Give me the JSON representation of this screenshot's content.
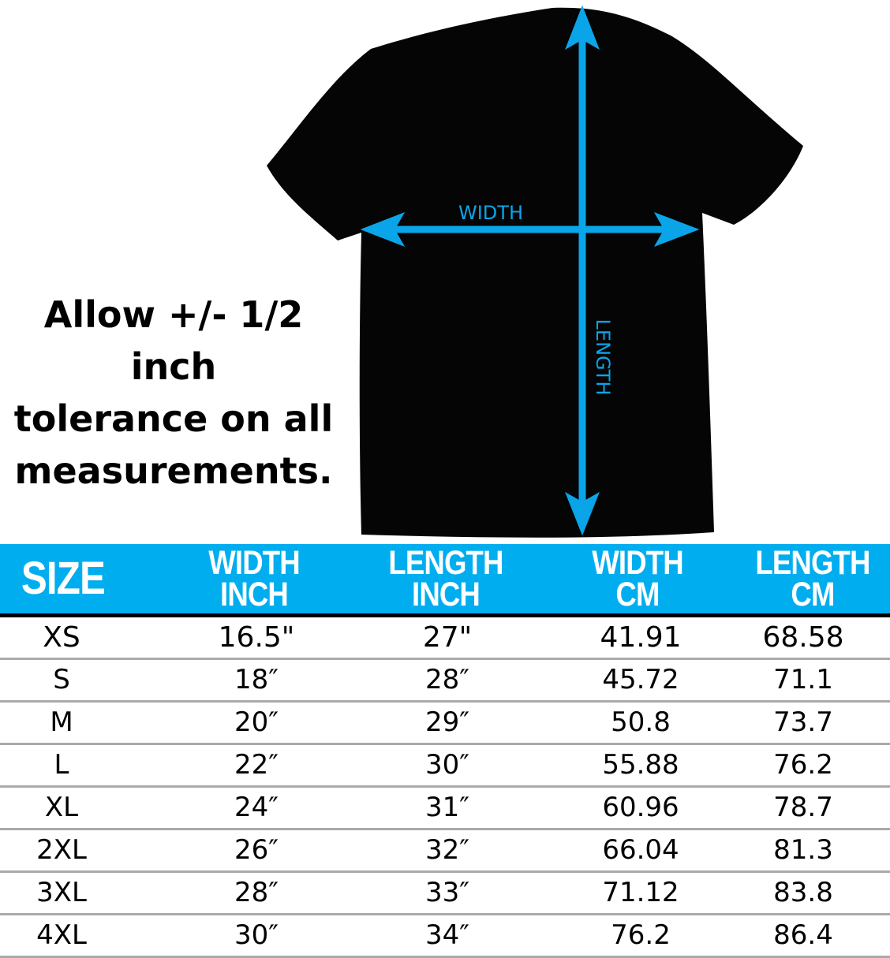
{
  "diagram": {
    "width_label": "WIDTH",
    "length_label": "LENGTH",
    "arrow_color": "#0aa5e9",
    "shirt_color": "#050505"
  },
  "tolerance_note": [
    "Allow +/- 1/2 inch",
    "tolerance on all",
    "measurements."
  ],
  "table": {
    "header_color": "#00aeef",
    "headers": [
      [
        "SIZE"
      ],
      [
        "WIDTH",
        "INCH"
      ],
      [
        "LENGTH",
        "INCH"
      ],
      [
        "WIDTH",
        "CM"
      ],
      [
        "LENGTH",
        "CM"
      ]
    ],
    "rows": [
      [
        "XS",
        "16.5\"",
        "27\"",
        "41.91",
        "68.58"
      ],
      [
        "S",
        "18″",
        "28″",
        "45.72",
        "71.1"
      ],
      [
        "M",
        "20″",
        "29″",
        "50.8",
        "73.7"
      ],
      [
        "L",
        "22″",
        "30″",
        "55.88",
        "76.2"
      ],
      [
        "XL",
        "24″",
        "31″",
        "60.96",
        "78.7"
      ],
      [
        "2XL",
        "26″",
        "32″",
        "66.04",
        "81.3"
      ],
      [
        "3XL",
        "28″",
        "33″",
        "71.12",
        "83.8"
      ],
      [
        "4XL",
        "30″",
        "34″",
        "76.2",
        "86.4"
      ]
    ]
  }
}
